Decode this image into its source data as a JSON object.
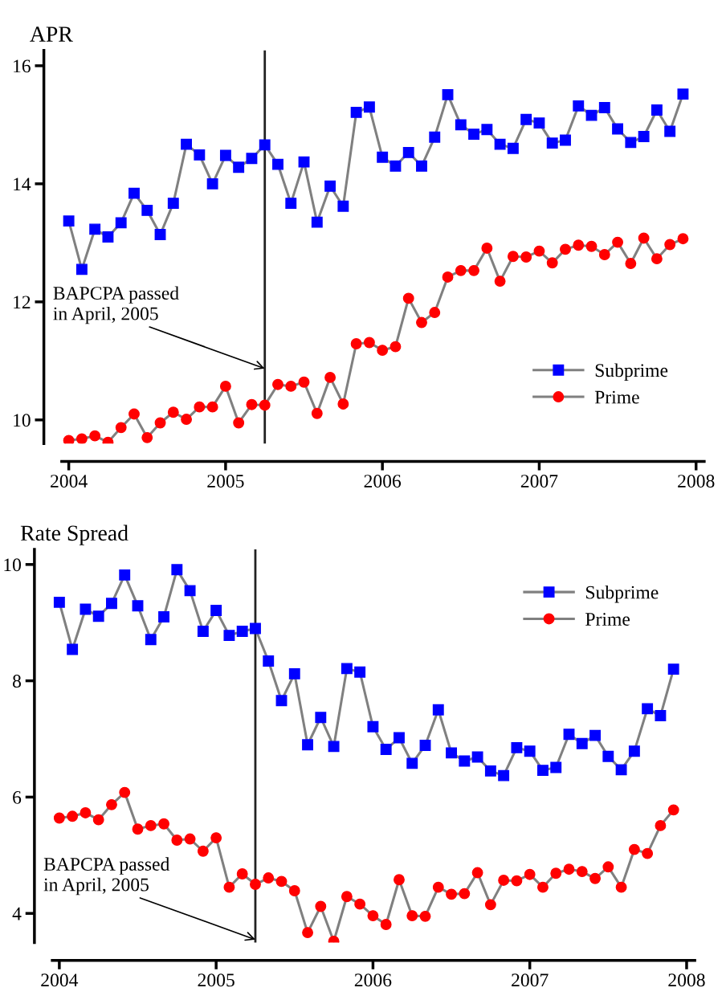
{
  "chart_data": [
    {
      "type": "line",
      "title": "APR",
      "x": [
        "2004-01",
        "2004-02",
        "2004-03",
        "2004-04",
        "2004-05",
        "2004-06",
        "2004-07",
        "2004-08",
        "2004-09",
        "2004-10",
        "2004-11",
        "2004-12",
        "2005-01",
        "2005-02",
        "2005-03",
        "2005-04",
        "2005-05",
        "2005-06",
        "2005-07",
        "2005-08",
        "2005-09",
        "2005-10",
        "2005-11",
        "2005-12",
        "2006-01",
        "2006-02",
        "2006-03",
        "2006-04",
        "2006-05",
        "2006-06",
        "2006-07",
        "2006-08",
        "2006-09",
        "2006-10",
        "2006-11",
        "2006-12",
        "2007-01",
        "2007-02",
        "2007-03",
        "2007-04",
        "2007-05",
        "2007-06",
        "2007-07",
        "2007-08",
        "2007-09",
        "2007-10",
        "2007-11",
        "2007-12"
      ],
      "series": [
        {
          "name": "Subprime",
          "color": "#0000ff",
          "marker": "square",
          "values": [
            13.37,
            12.55,
            13.23,
            13.1,
            13.34,
            13.84,
            13.55,
            13.14,
            13.67,
            14.67,
            14.49,
            14.0,
            14.48,
            14.28,
            14.43,
            14.66,
            14.33,
            13.67,
            14.37,
            13.35,
            13.96,
            13.62,
            15.21,
            15.3,
            14.45,
            14.3,
            14.53,
            14.3,
            14.79,
            15.51,
            15.0,
            14.84,
            14.92,
            14.67,
            14.6,
            15.09,
            15.03,
            14.69,
            14.74,
            15.32,
            15.16,
            15.29,
            14.93,
            14.7,
            14.8,
            15.25,
            14.89,
            15.52
          ]
        },
        {
          "name": "Prime",
          "color": "#ff0000",
          "marker": "circle",
          "values": [
            9.65,
            9.68,
            9.73,
            9.62,
            9.87,
            10.1,
            9.7,
            9.95,
            10.13,
            10.01,
            10.22,
            10.22,
            10.57,
            9.95,
            10.26,
            10.25,
            10.6,
            10.57,
            10.64,
            10.11,
            10.72,
            10.27,
            11.29,
            11.31,
            11.18,
            11.24,
            12.06,
            11.65,
            11.82,
            12.42,
            12.53,
            12.53,
            12.91,
            12.35,
            12.77,
            12.76,
            12.86,
            12.66,
            12.89,
            12.96,
            12.94,
            12.8,
            13.01,
            12.65,
            13.08,
            12.73,
            12.97,
            13.07
          ]
        }
      ],
      "xlim": [
        "2003-12-15",
        "2008-01-20"
      ],
      "xticks": [
        {
          "value": "2004",
          "label": "2004"
        },
        {
          "value": "2005",
          "label": "2005"
        },
        {
          "value": "2006",
          "label": "2006"
        },
        {
          "value": "2007",
          "label": "2007"
        },
        {
          "value": "2008",
          "label": "2008"
        }
      ],
      "ylim": [
        9.6,
        16.26
      ],
      "yticks": [
        10,
        12,
        14,
        16
      ],
      "ref_lines": [
        {
          "axis": "x",
          "value": "2005-04",
          "color": "#222222"
        }
      ],
      "annotations": [
        {
          "text": "BAPCPA passed\nin April, 2005",
          "x": "2005-04",
          "y": 10.87
        }
      ],
      "legend": "bottom right",
      "grid": false,
      "line_style": "solid"
    },
    {
      "type": "line",
      "title": "Rate Spread",
      "x": [
        "2004-01",
        "2004-02",
        "2004-03",
        "2004-04",
        "2004-05",
        "2004-06",
        "2004-07",
        "2004-08",
        "2004-09",
        "2004-10",
        "2004-11",
        "2004-12",
        "2005-01",
        "2005-02",
        "2005-03",
        "2005-04",
        "2005-05",
        "2005-06",
        "2005-07",
        "2005-08",
        "2005-09",
        "2005-10",
        "2005-11",
        "2005-12",
        "2006-01",
        "2006-02",
        "2006-03",
        "2006-04",
        "2006-05",
        "2006-06",
        "2006-07",
        "2006-08",
        "2006-09",
        "2006-10",
        "2006-11",
        "2006-12",
        "2007-01",
        "2007-02",
        "2007-03",
        "2007-04",
        "2007-05",
        "2007-06",
        "2007-07",
        "2007-08",
        "2007-09",
        "2007-10",
        "2007-11",
        "2007-12"
      ],
      "series": [
        {
          "name": "Subprime",
          "color": "#0000ff",
          "marker": "square",
          "values": [
            9.35,
            8.54,
            9.23,
            9.11,
            9.33,
            9.82,
            9.29,
            8.71,
            9.1,
            9.91,
            9.55,
            8.85,
            9.21,
            8.78,
            8.85,
            8.9,
            8.34,
            7.66,
            8.12,
            6.9,
            7.37,
            6.87,
            8.21,
            8.15,
            7.21,
            6.82,
            7.02,
            6.58,
            6.89,
            7.5,
            6.76,
            6.62,
            6.69,
            6.45,
            6.37,
            6.85,
            6.79,
            6.46,
            6.51,
            7.08,
            6.92,
            7.06,
            6.7,
            6.47,
            6.79,
            7.52,
            7.4,
            8.2
          ]
        },
        {
          "name": "Prime",
          "color": "#ff0000",
          "marker": "circle",
          "values": [
            5.64,
            5.67,
            5.73,
            5.61,
            5.87,
            6.08,
            5.45,
            5.51,
            5.54,
            5.26,
            5.28,
            5.07,
            5.3,
            4.45,
            4.68,
            4.5,
            4.61,
            4.55,
            4.39,
            3.67,
            4.12,
            3.52,
            4.29,
            4.16,
            3.96,
            3.81,
            4.58,
            3.96,
            3.95,
            4.45,
            4.33,
            4.34,
            4.7,
            4.15,
            4.57,
            4.56,
            4.67,
            4.45,
            4.69,
            4.76,
            4.72,
            4.6,
            4.8,
            4.45,
            5.1,
            5.03,
            5.51,
            5.78
          ]
        }
      ],
      "xlim": [
        "2003-12-15",
        "2008-01-20"
      ],
      "xticks": [
        {
          "value": "2004",
          "label": "2004"
        },
        {
          "value": "2005",
          "label": "2005"
        },
        {
          "value": "2006",
          "label": "2006"
        },
        {
          "value": "2007",
          "label": "2007"
        },
        {
          "value": "2008",
          "label": "2008"
        }
      ],
      "ylim": [
        3.5,
        10.26
      ],
      "yticks": [
        4,
        6,
        8,
        10
      ],
      "ref_lines": [
        {
          "axis": "x",
          "value": "2005-04",
          "color": "#222222"
        }
      ],
      "annotations": [
        {
          "text": "BAPCPA passed\nin April, 2005",
          "x": "2005-04",
          "y": 3.55
        }
      ],
      "legend": "top right",
      "grid": false,
      "line_style": "solid"
    }
  ]
}
